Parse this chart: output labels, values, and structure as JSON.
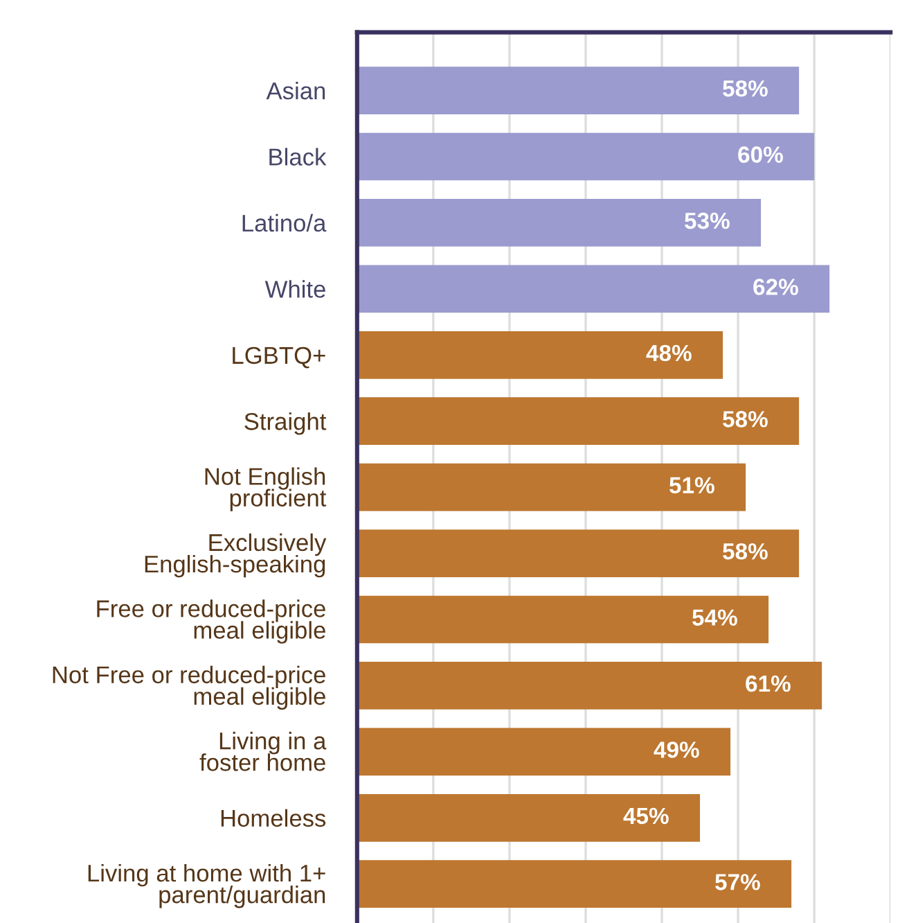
{
  "chart_data": {
    "type": "bar",
    "orientation": "horizontal",
    "categories": [
      "Asian",
      "Black",
      "Latino/a",
      "White",
      "LGBTQ+",
      "Straight",
      "Not English\nproficient",
      "Exclusively\nEnglish-speaking",
      "Free or reduced-price\nmeal eligible",
      "Not Free or reduced-price\nmeal eligible",
      "Living in a\nfoster home",
      "Homeless",
      "Living at home with 1+\nparent/guardian"
    ],
    "values": [
      58,
      60,
      53,
      62,
      48,
      58,
      51,
      58,
      54,
      61,
      49,
      45,
      57
    ],
    "colors": [
      "#9b9bcf",
      "#9b9bcf",
      "#9b9bcf",
      "#9b9bcf",
      "#bd7730",
      "#bd7730",
      "#bd7730",
      "#bd7730",
      "#bd7730",
      "#bd7730",
      "#bd7730",
      "#bd7730",
      "#bd7730"
    ],
    "value_labels": [
      "58%",
      "60%",
      "53%",
      "62%",
      "48%",
      "58%",
      "51%",
      "58%",
      "54%",
      "61%",
      "49%",
      "45%",
      "57%"
    ],
    "xlim": [
      0,
      70
    ],
    "xticks": [
      {
        "value": 0,
        "label": null
      },
      {
        "value": 10,
        "label": null
      },
      {
        "value": 20,
        "label": null
      },
      {
        "value": 30,
        "label": null
      },
      {
        "value": 40,
        "label": null
      },
      {
        "value": 50,
        "label": null
      },
      {
        "value": 60,
        "label": null
      },
      {
        "value": 70,
        "label": null
      }
    ],
    "grid": "x",
    "tick_labels": "y"
  }
}
